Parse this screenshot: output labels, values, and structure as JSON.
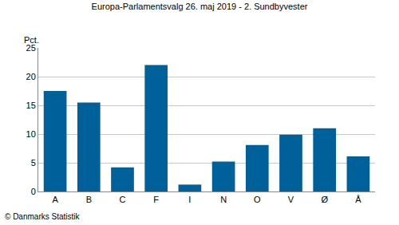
{
  "chart_data": {
    "type": "bar",
    "title": "Europa-Parlamentsvalg 26. maj 2019 - 2. Sundbyvester",
    "y_label": "Pct.",
    "categories": [
      "A",
      "B",
      "C",
      "F",
      "I",
      "N",
      "O",
      "V",
      "Ø",
      "Å"
    ],
    "values": [
      17.5,
      15.5,
      4.2,
      22.0,
      1.2,
      5.2,
      8.1,
      9.9,
      11.0,
      6.1
    ],
    "color": "#00609a",
    "ylim": [
      0,
      25
    ],
    "yticks": [
      0,
      5,
      10,
      15,
      20,
      25
    ],
    "grid": true,
    "annotations": [
      "© Danmarks Statistik"
    ]
  }
}
